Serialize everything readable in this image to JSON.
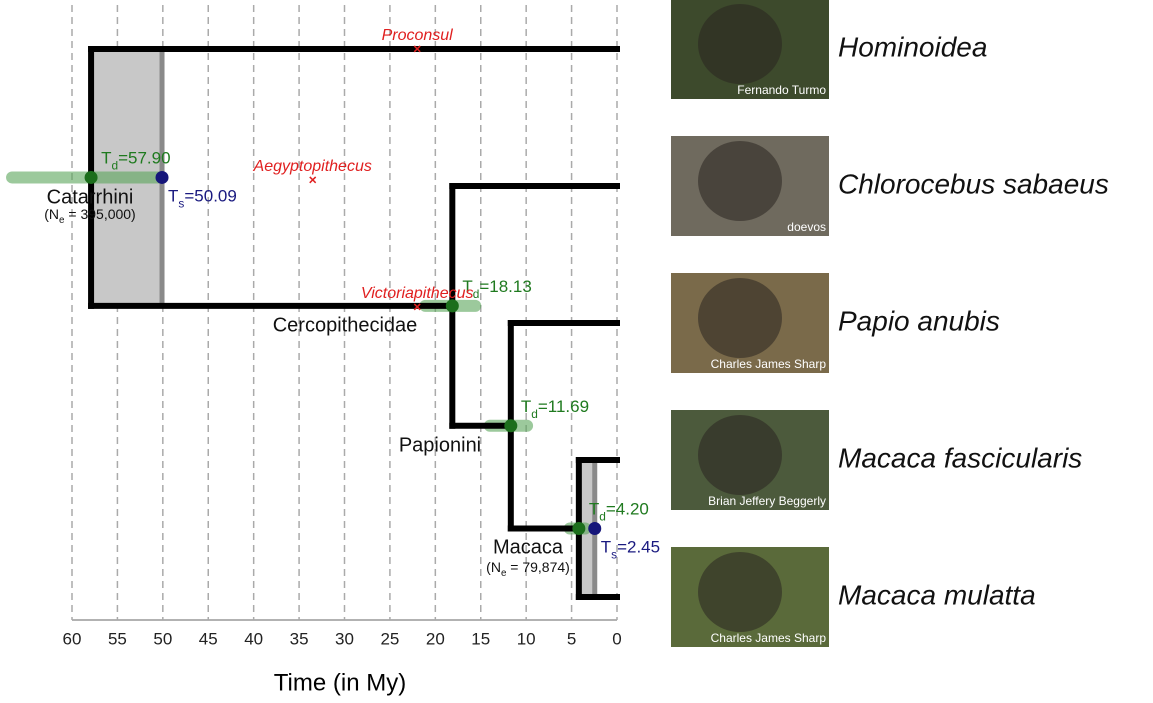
{
  "chart_data": {
    "type": "tree",
    "xlabel": "Time (in My)",
    "xlim": [
      60,
      0
    ],
    "xticks": [
      60,
      55,
      50,
      45,
      40,
      35,
      30,
      25,
      20,
      15,
      10,
      5,
      0
    ],
    "grid": true,
    "tips": [
      {
        "name": "Hominoidea",
        "credit": "Fernando Turmo"
      },
      {
        "name": "Chlorocebus sabaeus",
        "credit": "doevos"
      },
      {
        "name": "Papio anubis",
        "credit": "Charles James Sharp"
      },
      {
        "name": "Macaca fascicularis",
        "credit": "Brian Jeffery Beggerly"
      },
      {
        "name": "Macaca mulatta",
        "credit": "Charles James Sharp"
      }
    ],
    "nodes": [
      {
        "name": "Catarrhini",
        "td": {
          "value": 57.9,
          "label": [
            "T",
            "d",
            "=57.90"
          ]
        },
        "ts": {
          "value": 50.09,
          "label": [
            "T",
            "s",
            "=50.09"
          ]
        },
        "ne": {
          "value": 395000,
          "label": [
            "(N",
            "e",
            " = 395,000)"
          ]
        },
        "ci": [
          66.6,
          50.3
        ]
      },
      {
        "name": "Cercopithecidae",
        "td": {
          "value": 18.13,
          "label": [
            "T",
            "d",
            "=18.13"
          ]
        },
        "ci": [
          21.1,
          15.6
        ]
      },
      {
        "name": "Papionini",
        "td": {
          "value": 11.69,
          "label": [
            "T",
            "d",
            "=11.69"
          ]
        },
        "ci": [
          14.0,
          9.9
        ]
      },
      {
        "name": "Macaca",
        "td": {
          "value": 4.2,
          "label": [
            "T",
            "d",
            "=4.20"
          ]
        },
        "ts": {
          "value": 2.45,
          "label": [
            "T",
            "s",
            "=2.45"
          ]
        },
        "ne": {
          "value": 79874,
          "label": [
            "(N",
            "e",
            " = 79,874)"
          ]
        },
        "ci": [
          5.2,
          3.5
        ]
      }
    ],
    "fossils": [
      {
        "name": "Proconsul",
        "age": 22
      },
      {
        "name": "Aegyptopithecus",
        "age": 33.5
      },
      {
        "name": "Victoriapithecus",
        "age": 22
      }
    ]
  }
}
